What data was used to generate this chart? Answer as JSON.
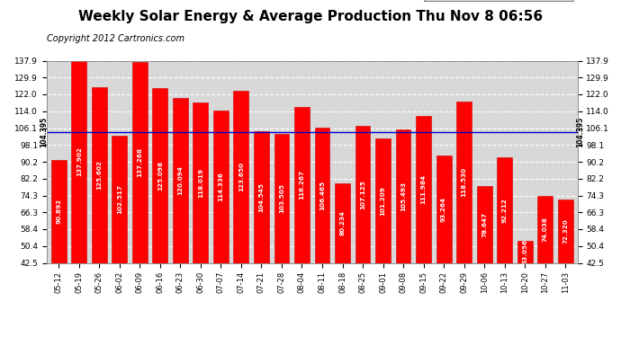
{
  "title": "Weekly Solar Energy & Average Production Thu Nov 8 06:56",
  "copyright": "Copyright 2012 Cartronics.com",
  "categories": [
    "05-12",
    "05-19",
    "05-26",
    "06-02",
    "06-09",
    "06-16",
    "06-23",
    "06-30",
    "07-07",
    "07-14",
    "07-21",
    "07-28",
    "08-04",
    "08-11",
    "08-18",
    "08-25",
    "09-01",
    "09-08",
    "09-15",
    "09-22",
    "09-29",
    "10-06",
    "10-13",
    "10-20",
    "10-27",
    "11-03"
  ],
  "values": [
    90.892,
    137.902,
    125.602,
    102.517,
    137.268,
    125.098,
    120.094,
    118.019,
    114.336,
    123.65,
    104.545,
    103.505,
    116.267,
    106.465,
    80.234,
    107.125,
    101.209,
    105.493,
    111.984,
    93.264,
    118.53,
    78.647,
    92.212,
    53.056,
    74.038,
    72.32
  ],
  "average_line": 104.395,
  "average_label": "104.395",
  "bar_color": "#ff0000",
  "bar_edge_color": "#cc0000",
  "average_line_color": "#0000cc",
  "background_color": "#ffffff",
  "plot_bg_color": "#d8d8d8",
  "yticks_left": [
    42.5,
    50.4,
    58.4,
    66.3,
    74.3,
    82.2,
    90.2,
    98.1,
    106.1,
    114.0,
    122.0,
    129.9,
    137.9
  ],
  "grid_color": "#ffffff",
  "legend_avg_color": "#0000bb",
  "legend_weekly_color": "#ff0000",
  "ymin": 42.5,
  "ymax": 137.9,
  "value_fontsize": 5.2,
  "title_fontsize": 11,
  "copyright_fontsize": 7
}
